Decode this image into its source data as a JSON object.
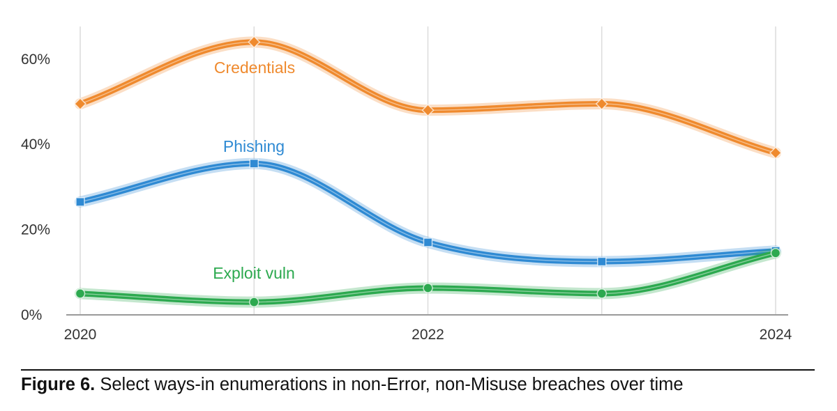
{
  "chart_data": {
    "type": "line",
    "x": [
      2020,
      2021,
      2022,
      2023,
      2024
    ],
    "x_tick_labels": [
      {
        "x": 2020,
        "label": "2020"
      },
      {
        "x": 2022,
        "label": "2022"
      },
      {
        "x": 2024,
        "label": "2024"
      }
    ],
    "y_ticks": [
      {
        "value": 0,
        "label": "0%"
      },
      {
        "value": 20,
        "label": "20%"
      },
      {
        "value": 40,
        "label": "40%"
      },
      {
        "value": 60,
        "label": "60%"
      }
    ],
    "ylim": [
      0,
      67
    ],
    "xlim": [
      2020,
      2024
    ],
    "grid": "vertical",
    "series": [
      {
        "name": "Credentials",
        "color": "#ef8a2e",
        "marker": "diamond",
        "values": [
          49.5,
          64,
          48,
          49.5,
          38
        ]
      },
      {
        "name": "Phishing",
        "color": "#2f8ad3",
        "marker": "square",
        "values": [
          26.5,
          35.5,
          17,
          12.5,
          15
        ]
      },
      {
        "name": "Exploit vuln",
        "color": "#2ca94f",
        "marker": "circle",
        "values": [
          5,
          3,
          6.3,
          5,
          14.5
        ]
      }
    ]
  },
  "caption": {
    "lead": "Figure 6.",
    "text": " Select ways-in enumerations in non-Error, non-Misuse breaches over time"
  }
}
